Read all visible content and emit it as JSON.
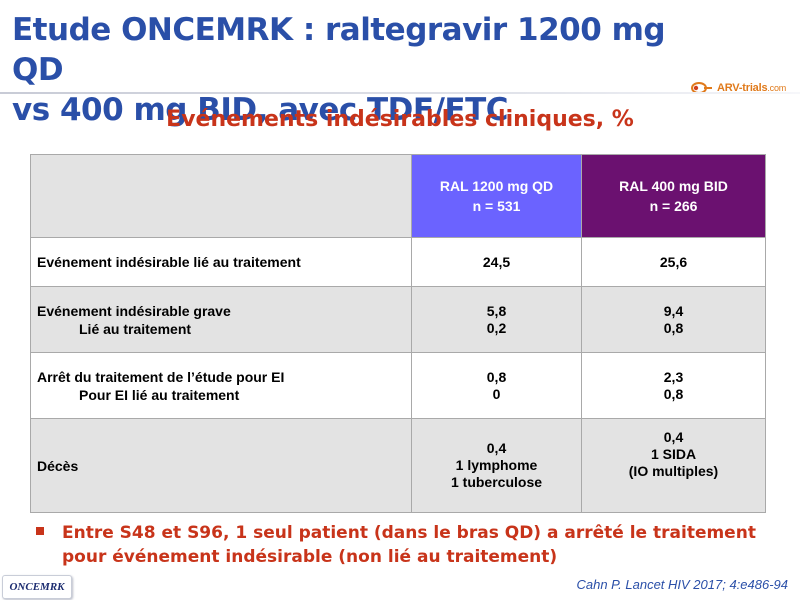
{
  "slide": {
    "title_line1": "Etude ONCEMRK : raltegravir 1200 mg QD",
    "title_line2": "vs 400 mg BID, avec TDF/FTC",
    "subtitle": "Evénements indésirables cliniques, %",
    "logo_text": "ARV-trials",
    "logo_suffix": ".com",
    "colors": {
      "title": "#2a4fa8",
      "accent_red": "#c8341a",
      "qd_header": "#6b63ff",
      "bid_header": "#6b1170",
      "row_grey": "#e3e3e3"
    }
  },
  "table": {
    "headers": {
      "qd_line1": "RAL 1200 mg QD",
      "qd_line2": "n = 531",
      "bid_line1": "RAL 400 mg BID",
      "bid_line2": "n = 266"
    },
    "rows": [
      {
        "label": "Evénement indésirable lié au traitement",
        "qd": "24,5",
        "bid": "25,6"
      },
      {
        "label": "Evénement indésirable grave",
        "sublabel": "Lié au traitement",
        "qd": "5,8",
        "qd2": "0,2",
        "bid": "9,4",
        "bid2": "0,8"
      },
      {
        "label": "Arrêt du traitement de l’étude pour EI",
        "sublabel": "Pour EI lié au traitement",
        "qd": "0,8",
        "qd2": "0",
        "bid": "2,3",
        "bid2": "0,8"
      },
      {
        "label": "Décès",
        "qd": "0,4",
        "qd2": "1 lymphome",
        "qd3": "1 tuberculose",
        "bid": "0,4",
        "bid2": "1 SIDA",
        "bid3": "(IO multiples)"
      }
    ]
  },
  "bullet": {
    "line1": "Entre S48 et S96, 1 seul patient (dans le bras QD) a arrêté le traitement",
    "line2": "pour événement indésirable (non lié au traitement)"
  },
  "footer": {
    "study_logo": "ONCEMRK",
    "citation": "Cahn P. Lancet HIV 2017; 4:e486-94"
  }
}
